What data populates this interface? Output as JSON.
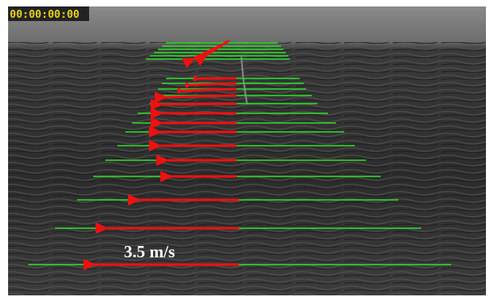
{
  "overlay": {
    "timestamp": "00:00:00:00",
    "scale_label": "3.5 m/s"
  }
}
